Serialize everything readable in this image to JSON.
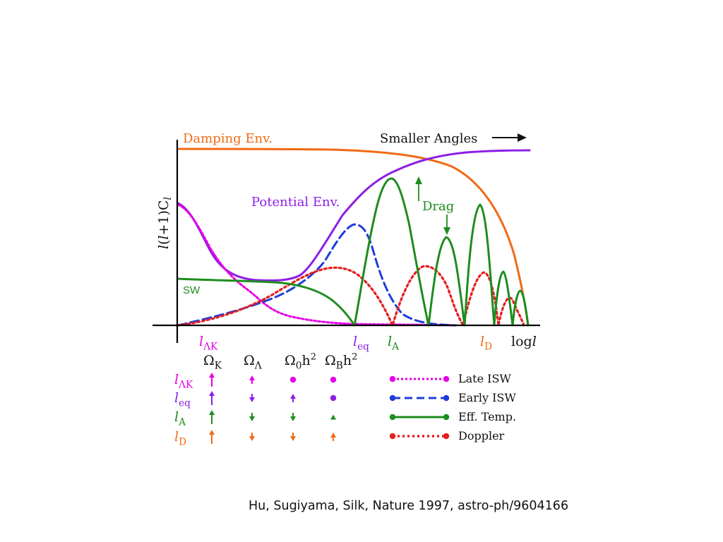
{
  "diagram": {
    "labels": {
      "damping_env": "Damping Env.",
      "smaller_angles": "Smaller Angles",
      "potential_env": "Potential Env.",
      "drag": "Drag",
      "sw": "SW",
      "y_axis": "l(l+1)C_l",
      "log_l": "log",
      "log_l_var": "l"
    },
    "x_markers": [
      {
        "sym": "l",
        "sub": "ΛK",
        "color": "#e600e6"
      },
      {
        "sym": "l",
        "sub": "eq",
        "color": "#8c1ee6"
      },
      {
        "sym": "l",
        "sub": "A",
        "color": "#1e8c1e"
      },
      {
        "sym": "l",
        "sub": "D",
        "color": "#f06a14"
      }
    ],
    "colors": {
      "damping": "#f06a14",
      "potential": "#8c1ee6",
      "late_isw": "#e600e6",
      "early_isw": "#1e3cdc",
      "eff_temp": "#1e8c1e",
      "doppler": "#e61e1e",
      "axis": "#000000"
    },
    "parameter_table": {
      "headers": [
        {
          "sym": "Ω",
          "sub": "K",
          "sup": ""
        },
        {
          "sym": "Ω",
          "sub": "Λ",
          "sup": ""
        },
        {
          "sym": "Ω",
          "sub": "0",
          "post": "h",
          "sup": "2"
        },
        {
          "sym": "Ω",
          "sub": "B",
          "post": "h",
          "sup": "2"
        }
      ],
      "rows": [
        {
          "sym": "l",
          "sub": "ΛK",
          "color": "#e600e6",
          "cells": [
            "up-large",
            "up-small",
            "dot",
            "dot"
          ]
        },
        {
          "sym": "l",
          "sub": "eq",
          "color": "#8c1ee6",
          "cells": [
            "up-large",
            "down-small",
            "up-small",
            "dot"
          ]
        },
        {
          "sym": "l",
          "sub": "A",
          "color": "#1e8c1e",
          "cells": [
            "up-large",
            "down-small",
            "down-small",
            "up-tiny"
          ]
        },
        {
          "sym": "l",
          "sub": "D",
          "color": "#f06a14",
          "cells": [
            "up-large",
            "down-small",
            "down-small",
            "up-small"
          ]
        }
      ]
    },
    "legend": [
      {
        "label": "Late ISW",
        "style": "dotted",
        "color": "#e600e6"
      },
      {
        "label": "Early ISW",
        "style": "dashed",
        "color": "#1e3cdc"
      },
      {
        "label": "Eff. Temp.",
        "style": "solid",
        "color": "#1e8c1e"
      },
      {
        "label": "Doppler",
        "style": "dotted-thick",
        "color": "#e61e1e"
      }
    ]
  },
  "citation": "Hu, Sugiyama, Silk, Nature 1997,  astro-ph/9604166"
}
